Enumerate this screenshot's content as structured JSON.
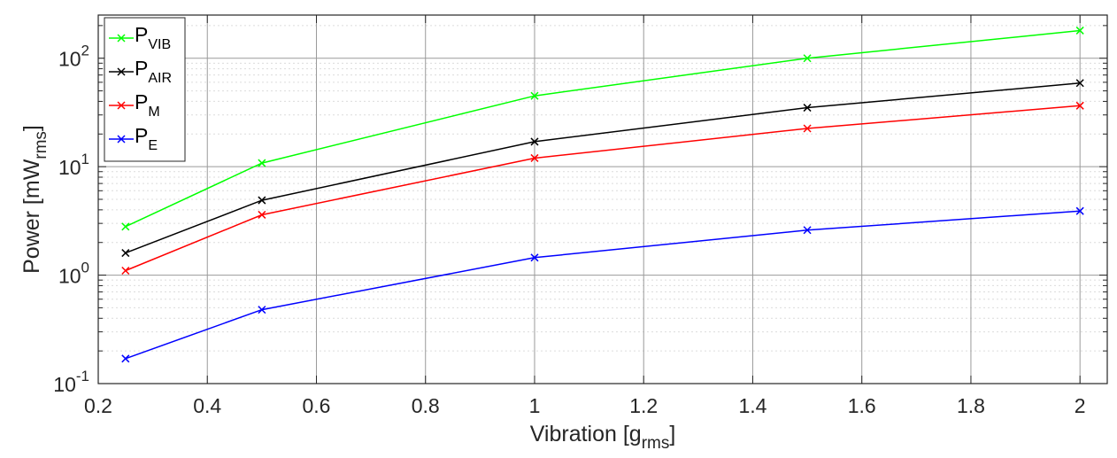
{
  "chart_data": {
    "type": "line",
    "xlabel": {
      "main": "Vibration [g",
      "sub": "rms",
      "close": "]"
    },
    "ylabel": {
      "main": "Power [mW",
      "sub": "rms",
      "close": "]"
    },
    "x": [
      0.25,
      0.5,
      1,
      1.5,
      2
    ],
    "xlim": [
      0.2,
      2.05
    ],
    "xticks": [
      0.2,
      0.4,
      0.6,
      0.8,
      1,
      1.2,
      1.4,
      1.6,
      1.8,
      2
    ],
    "xtick_labels": [
      "0.2",
      "0.4",
      "0.6",
      "0.8",
      "1",
      "1.2",
      "1.4",
      "1.6",
      "1.8",
      "2"
    ],
    "yscale": "log",
    "ylim": [
      0.1,
      250
    ],
    "ytick_labels": [
      {
        "base": "10",
        "exp": "-1"
      },
      {
        "base": "10",
        "exp": "0"
      },
      {
        "base": "10",
        "exp": "1"
      },
      {
        "base": "10",
        "exp": "2"
      }
    ],
    "grid": true,
    "minor_grid": true,
    "marker": "x",
    "legend_position": "top-left",
    "series": [
      {
        "name": "P",
        "name_sub": "VIB",
        "color": "#00ff00",
        "values": [
          2.8,
          10.8,
          45,
          100,
          180
        ]
      },
      {
        "name": "P",
        "name_sub": "AIR",
        "color": "#000000",
        "values": [
          1.6,
          4.9,
          17,
          35,
          59
        ]
      },
      {
        "name": "P",
        "name_sub": "M",
        "color": "#ff0000",
        "values": [
          1.1,
          3.6,
          12,
          22.5,
          36.5
        ]
      },
      {
        "name": "P",
        "name_sub": "E",
        "color": "#0000ff",
        "values": [
          0.17,
          0.48,
          1.45,
          2.6,
          3.9
        ]
      }
    ]
  }
}
